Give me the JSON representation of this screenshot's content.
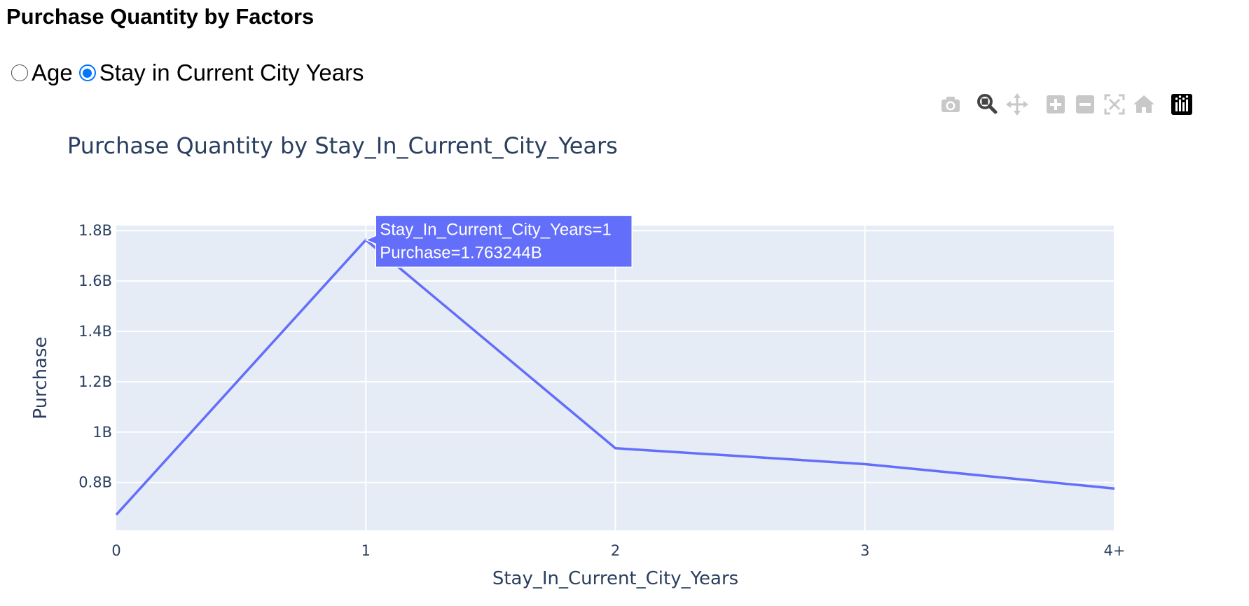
{
  "page": {
    "title": "Purchase Quantity by Factors"
  },
  "factor_selector": {
    "options": [
      {
        "label": "Age",
        "checked": false
      },
      {
        "label": "Stay in Current City Years",
        "checked": true
      }
    ]
  },
  "modebar": {
    "buttons": [
      {
        "icon": "camera-icon",
        "tooltip": "Download plot as a png"
      },
      {
        "icon": "zoom-icon",
        "tooltip": "Zoom",
        "active": true
      },
      {
        "icon": "pan-icon",
        "tooltip": "Pan"
      },
      {
        "icon": "zoom-in-icon",
        "tooltip": "Zoom in"
      },
      {
        "icon": "zoom-out-icon",
        "tooltip": "Zoom out"
      },
      {
        "icon": "autoscale-icon",
        "tooltip": "Autoscale"
      },
      {
        "icon": "home-icon",
        "tooltip": "Reset axes"
      },
      {
        "icon": "plotly-logo-icon",
        "tooltip": "Produced with Plotly"
      }
    ]
  },
  "colors": {
    "line": "#636efa",
    "plot_bg": "#e5ecf6",
    "grid": "#ffffff",
    "axis_text": "#2a3f5f"
  },
  "chart_data": {
    "type": "line",
    "title": "Purchase Quantity by Stay_In_Current_City_Years",
    "xlabel": "Stay_In_Current_City_Years",
    "ylabel": "Purchase",
    "categories": [
      "0",
      "1",
      "2",
      "3",
      "4+"
    ],
    "series": [
      {
        "values": [
          672000000,
          1763244000,
          936000000,
          873000000,
          776000000
        ]
      }
    ],
    "ylim": [
      610000000,
      1820000000
    ],
    "y_ticks": [
      800000000,
      1000000000,
      1200000000,
      1400000000,
      1600000000,
      1800000000
    ],
    "y_tick_labels": [
      "0.8B",
      "1B",
      "1.2B",
      "1.4B",
      "1.6B",
      "1.8B"
    ],
    "grid": true,
    "hover": {
      "index": 1,
      "line1": "Stay_In_Current_City_Years=1",
      "line2": "Purchase=1.763244B"
    }
  }
}
